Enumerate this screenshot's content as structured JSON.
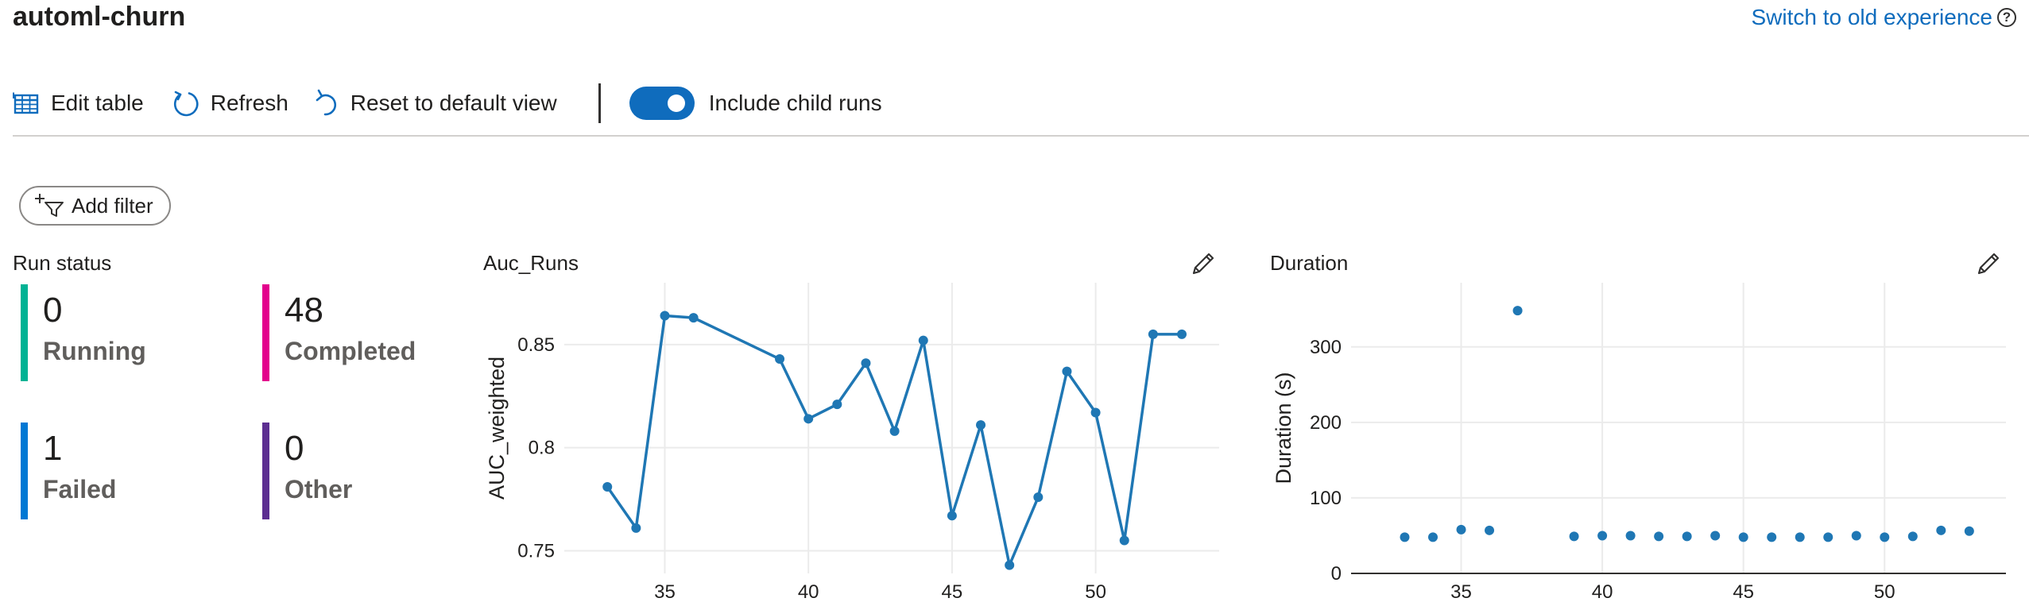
{
  "page": {
    "title": "automl-churn",
    "switch_link": "Switch to old experience",
    "help_glyph": "?"
  },
  "toolbar": {
    "edit_table": "Edit table",
    "refresh": "Refresh",
    "reset_view": "Reset to default view",
    "include_child_runs": "Include child runs",
    "include_child_runs_on": true
  },
  "filter": {
    "add_filter": "Add filter"
  },
  "run_status": {
    "title": "Run status",
    "items": [
      {
        "count": "0",
        "label": "Running",
        "color": "#00b294"
      },
      {
        "count": "48",
        "label": "Completed",
        "color": "#e3008c"
      },
      {
        "count": "1",
        "label": "Failed",
        "color": "#0078d4"
      },
      {
        "count": "0",
        "label": "Other",
        "color": "#5c2e91"
      }
    ]
  },
  "chart_data": [
    {
      "type": "line",
      "title": "Auc_Runs",
      "ylabel": "AUC_weighted",
      "xlabel": "",
      "x": [
        33,
        34,
        35,
        36,
        39,
        40,
        41,
        42,
        43,
        44,
        45,
        46,
        47,
        48,
        49,
        50,
        51,
        52,
        53
      ],
      "y": [
        0.781,
        0.761,
        0.864,
        0.863,
        0.843,
        0.814,
        0.821,
        0.841,
        0.808,
        0.852,
        0.767,
        0.811,
        0.743,
        0.776,
        0.837,
        0.817,
        0.755,
        0.855,
        0.855
      ],
      "xlim": [
        31.5,
        54.3
      ],
      "ylim": [
        0.739,
        0.88
      ],
      "xticks": [
        35,
        40,
        45,
        50
      ],
      "yticks": [
        0.75,
        0.8,
        0.85
      ],
      "ytick_labels": [
        "0.75",
        "0.8",
        "0.85"
      ],
      "grid": true,
      "color": "#1f77b4"
    },
    {
      "type": "scatter",
      "title": "Duration",
      "ylabel": "Duration (s)",
      "xlabel": "",
      "x": [
        33,
        34,
        35,
        36,
        37,
        39,
        40,
        41,
        42,
        43,
        44,
        45,
        46,
        47,
        48,
        49,
        50,
        51,
        52,
        53
      ],
      "y": [
        48,
        48,
        58,
        57,
        348,
        49,
        50,
        50,
        49,
        49,
        50,
        48,
        48,
        48,
        48,
        50,
        48,
        49,
        57,
        56
      ],
      "xlim": [
        31.1,
        54.3
      ],
      "ylim": [
        0,
        385
      ],
      "xticks": [
        35,
        40,
        45,
        50
      ],
      "yticks": [
        0,
        100,
        200,
        300
      ],
      "ytick_labels": [
        "0",
        "100",
        "200",
        "300"
      ],
      "grid": true,
      "color": "#1f77b4"
    }
  ]
}
